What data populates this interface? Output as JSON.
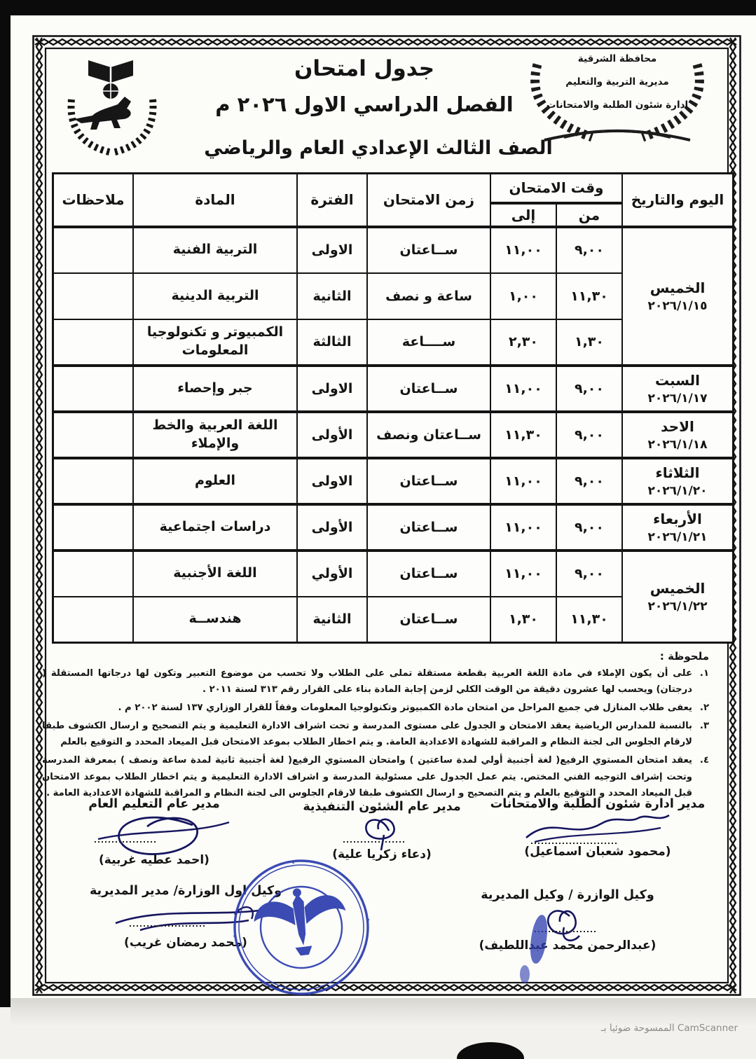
{
  "document": {
    "org_emblem_lines": [
      "محافظة الشرقية",
      "مديرية التربية والتعليم",
      "ادارة شئون الطلبة والامتحانات"
    ],
    "title_line1": "جدول امتحان",
    "title_line2": "الفصل الدراسي الاول ٢٠٢٦ م",
    "subtitle": "الصف الثالث الإعدادي العام والرياضي",
    "icons": {
      "left_emblem": "horse-book-wreath-emblem",
      "right_emblem": "laurel-wreath-emblem",
      "stamp": "egypt-eagle-official-stamp",
      "frame": "zigzag-border-frame"
    },
    "colors": {
      "ink": "#141414",
      "stamp_blue": "#2b3cae",
      "paper": "#fcfcf9"
    },
    "table": {
      "headers": {
        "day": "اليوم والتاريخ",
        "time_group": "وقت الامتحان",
        "from": "من",
        "to": "إلى",
        "duration": "زمن الامتحان",
        "period": "الفترة",
        "subject": "المادة",
        "notes": "ملاحظات"
      },
      "rows": [
        {
          "group_start": true,
          "day": {
            "label": "الخميس",
            "date": "٢٠٢٦/١/١٥",
            "span": 3
          },
          "from": "٩,٠٠",
          "to": "١١,٠٠",
          "duration": "ســاعتان",
          "period": "الاولى",
          "subject": "التربية الفنية",
          "note": ""
        },
        {
          "group_start": false,
          "from": "١١,٣٠",
          "to": "١,٠٠",
          "duration": "ساعة و نصف",
          "period": "الثانية",
          "subject": "التربية الدينية",
          "note": ""
        },
        {
          "group_start": false,
          "from": "١,٣٠",
          "to": "٢,٣٠",
          "duration": "ســــاعة",
          "period": "الثالثة",
          "subject": "الكمبيوتر و تكنولوجيا المعلومات",
          "note": ""
        },
        {
          "group_start": true,
          "day": {
            "label": "السبت",
            "date": "٢٠٢٦/١/١٧",
            "span": 1
          },
          "from": "٩,٠٠",
          "to": "١١,٠٠",
          "duration": "ســاعتان",
          "period": "الاولى",
          "subject": "جبر وإحصاء",
          "note": ""
        },
        {
          "group_start": true,
          "day": {
            "label": "الاحد",
            "date": "٢٠٢٦/١/١٨",
            "span": 1
          },
          "from": "٩,٠٠",
          "to": "١١,٣٠",
          "duration": "ســاعتان ونصف",
          "period": "الأولى",
          "subject": "اللغة العربية والخط والإملاء",
          "note": ""
        },
        {
          "group_start": true,
          "day": {
            "label": "الثلاثاء",
            "date": "٢٠٢٦/١/٢٠",
            "span": 1
          },
          "from": "٩,٠٠",
          "to": "١١,٠٠",
          "duration": "ســاعتان",
          "period": "الاولى",
          "subject": "العلوم",
          "note": ""
        },
        {
          "group_start": true,
          "day": {
            "label": "الأربعاء",
            "date": "٢٠٢٦/١/٢١",
            "span": 1
          },
          "from": "٩,٠٠",
          "to": "١١,٠٠",
          "duration": "ســاعتان",
          "period": "الأولى",
          "subject": "دراسات اجتماعية",
          "note": ""
        },
        {
          "group_start": true,
          "day": {
            "label": "الخميس",
            "date": "٢٠٢٦/١/٢٢",
            "span": 2
          },
          "from": "٩,٠٠",
          "to": "١١,٠٠",
          "duration": "ســاعتان",
          "period": "الأولي",
          "subject": "اللغة الأجنبية",
          "note": ""
        },
        {
          "group_start": false,
          "from": "١١,٣٠",
          "to": "١,٣٠",
          "duration": "ســاعتان",
          "period": "الثانية",
          "subject": "هندســة",
          "note": ""
        }
      ]
    },
    "notes": {
      "title": "ملحوظة :",
      "items": [
        {
          "num": "١.",
          "text": "على أن يكون الإملاء في مادة اللغة العربية بقطعة مستقلة تملى على الطلاب ولا تحسب من موضوع التعبير وتكون لها درجاتها المستقلة ( درجتان) ويحسب لها عشرون دقيقة من الوقت الكلي لزمن إجابة المادة بناء على القرار رقم ٣١٣ لسنة ٢٠١١ ."
        },
        {
          "num": "٢.",
          "text": "يعفى طلاب المنازل في جميع المراحل من امتحان مادة الكمبيوتر وتكنولوجيا المعلومات وفقاً للقرار الوزاري ١٣٧ لسنة ٢٠٠٢ م ."
        },
        {
          "num": "٣.",
          "text": "بالنسبة للمدارس الرياضية يعقد الامتحان و الجدول على مستوى المدرسة و تحت اشراف الادارة التعليمية و يتم التصحيح و ارسال الكشوف طبقا لارقام الجلوس الى لجنة النظام و المراقبة للشهادة الاعدادية العامة. و يتم اخطار الطلاب بموعد الامتحان قبل الميعاد المحدد و التوقيع بالعلم"
        },
        {
          "num": "٤.",
          "text": "يعقد امتحان المستوي الرفيع( لغة أجنبية أولي لمدة ساعتين ) وامتحان المستوي الرفيع( لغة أجنبية ثانية لمدة ساعة ونصف ) بمعرفة المدرسة وتحت إشراف التوجيه الفني المختص. يتم عمل الجدول على مسئولية المدرسة و اشراف الادارة التعليمية و يتم اخطار الطلاب بموعد الامتحان قبل الميعاد المحدد و التوقيع بالعلم و يتم التصحيح و ارسال الكشوف طبقا لارقام الجلوس الى لجنة النظام و المراقبة للشهادة الاعدادية العامة ."
        }
      ]
    },
    "signatures": {
      "row1": [
        {
          "title": "مدير ادارة شئون الطلبة والامتحانات",
          "name": "(محمود شعبان اسماعيل)"
        },
        {
          "title": "مدير عام الشئون التنفيذية",
          "name": "(دعاء زكريا علية)"
        },
        {
          "title": "مدير عام التعليم العام",
          "name": "(احمد عطيه غربية)"
        }
      ],
      "row2": [
        {
          "title": "وكيل الوازرة / وكيل المديرية",
          "name": "(عبدالرحمن محمد عبداللطيف)"
        },
        {
          "title": "وكيل اول الوزارة/ مدير المديرية",
          "name": "(محمد رمضان غريب)"
        }
      ]
    },
    "watermark": "الممسوحة ضوئيا بـ CamScanner"
  }
}
